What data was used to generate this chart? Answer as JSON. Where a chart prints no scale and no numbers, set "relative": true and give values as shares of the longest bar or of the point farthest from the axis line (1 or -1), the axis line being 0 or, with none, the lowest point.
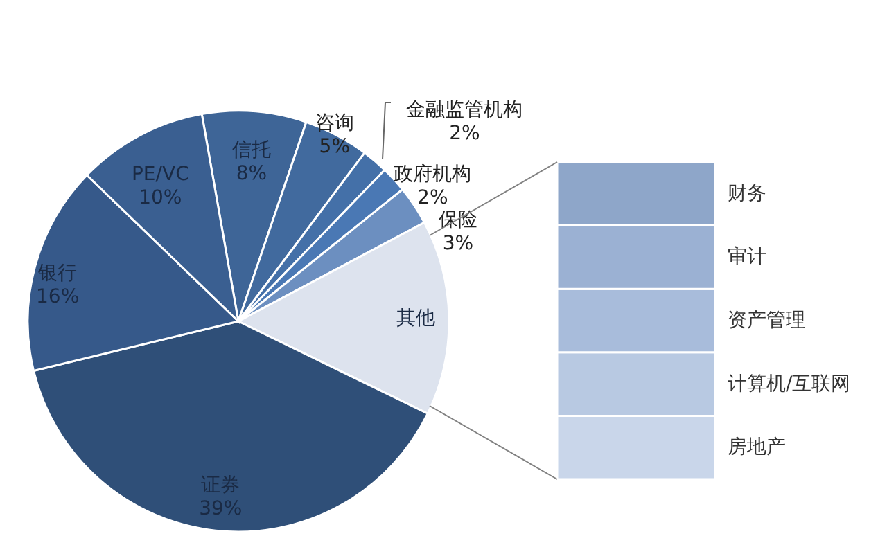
{
  "chart_data": [
    {
      "type": "pie",
      "categories": [
        "信托",
        "咨询",
        "金融监管机构",
        "政府机构",
        "保险",
        "其他",
        "证券",
        "银行",
        "PE/VC"
      ],
      "values": [
        8,
        5,
        2,
        2,
        3,
        15,
        39,
        16,
        10
      ],
      "colors": [
        "#3e6597",
        "#416a9e",
        "#4470a8",
        "#4a78b4",
        "#6c8fc0",
        "#dde3ee",
        "#2f4f78",
        "#36598a",
        "#3a5f91"
      ],
      "value_labels": [
        "8%",
        "5%",
        "2%",
        "2%",
        "3%",
        null,
        "39%",
        "16%",
        "10%"
      ]
    },
    {
      "type": "bar",
      "stacked": true,
      "relative": true,
      "categories": [
        null
      ],
      "series": [
        {
          "name": "房地产",
          "color": "#c9d6ea",
          "values": [
            0.2
          ]
        },
        {
          "name": "计算机/互联网",
          "color": "#b8c9e2",
          "values": [
            0.2
          ]
        },
        {
          "name": "资产管理",
          "color": "#a8bcdb",
          "values": [
            0.2
          ]
        },
        {
          "name": "审计",
          "color": "#9bb1d3",
          "values": [
            0.2
          ]
        },
        {
          "name": "财务",
          "color": "#8ea6c9",
          "values": [
            0.2
          ]
        }
      ]
    }
  ]
}
